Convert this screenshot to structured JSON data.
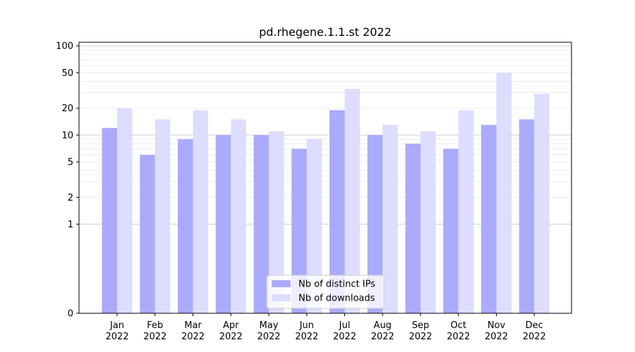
{
  "chart_data": {
    "type": "bar",
    "title": "pd.rhegene.1.1.st 2022",
    "xlabel": "",
    "ylabel": "",
    "yscale": "symlog",
    "ylim": [
      0,
      110
    ],
    "yticks": [
      0,
      1,
      2,
      5,
      10,
      20,
      50,
      100
    ],
    "grid": true,
    "legend_position": "bottom-center",
    "categories": [
      "Jan\n2022",
      "Feb\n2022",
      "Mar\n2022",
      "Apr\n2022",
      "May\n2022",
      "Jun\n2022",
      "Jul\n2022",
      "Aug\n2022",
      "Sep\n2022",
      "Oct\n2022",
      "Nov\n2022",
      "Dec\n2022"
    ],
    "series": [
      {
        "name": "Nb of distinct IPs",
        "color": "#aaaaff",
        "values": [
          12,
          6,
          9,
          10,
          10,
          7,
          19,
          10,
          8,
          7,
          13,
          15
        ]
      },
      {
        "name": "Nb of downloads",
        "color": "#ddddff",
        "values": [
          20,
          15,
          19,
          15,
          11,
          9,
          33,
          13,
          11,
          19,
          50,
          29
        ]
      }
    ]
  }
}
